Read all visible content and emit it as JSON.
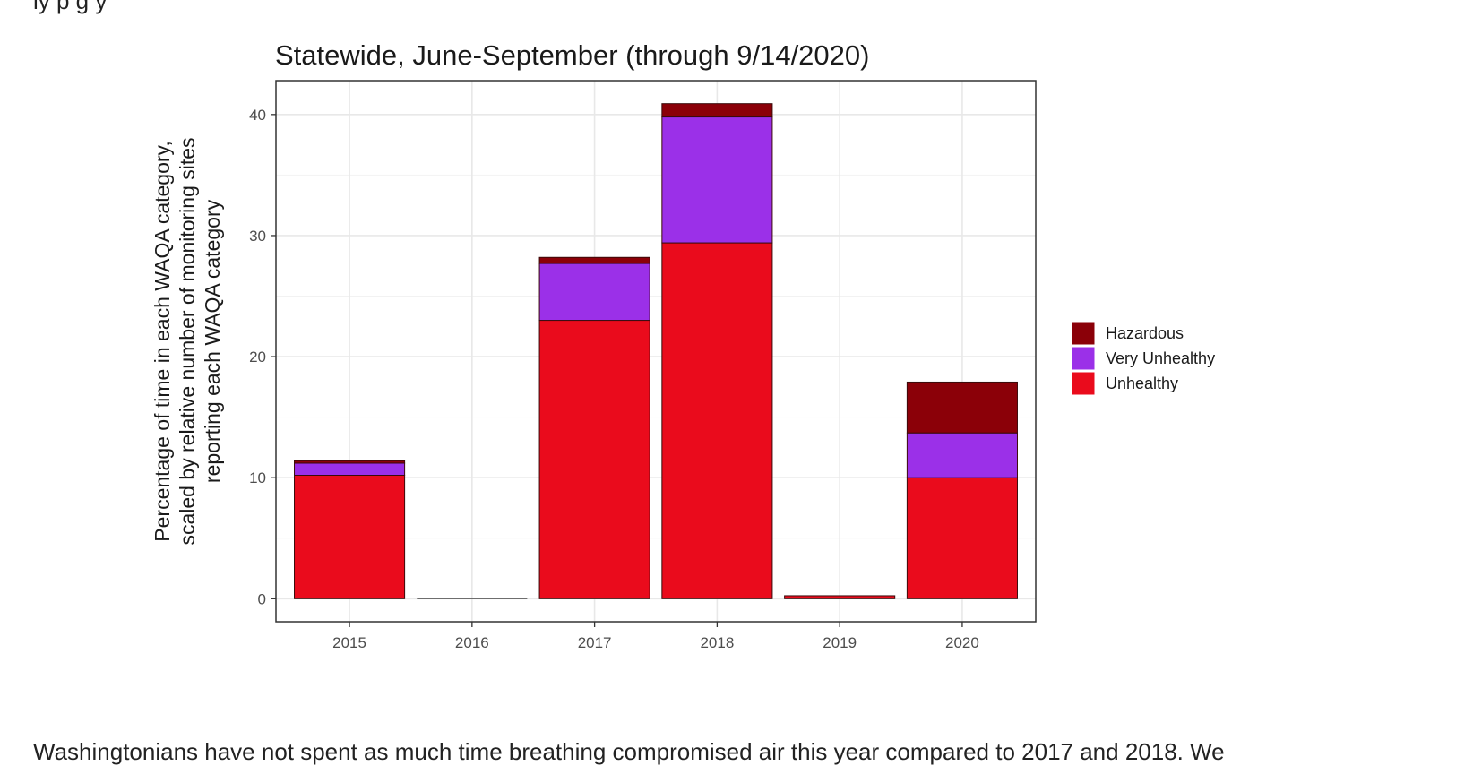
{
  "page": {
    "top_partial_text": "ly                      p                   g                                                                                          y",
    "bottom_partial_text": "Washingtonians have not spent as much time breathing compromised air this year compared to 2017 and 2018. We"
  },
  "chart_data": {
    "type": "bar",
    "stacked": true,
    "title": "Statewide, June-September (through 9/14/2020)",
    "ylabel_lines": [
      "Percentage of time in each WAQA category,",
      "scaled by relative number of monitoring sites",
      "reporting each WAQA category"
    ],
    "xlabel": "",
    "categories": [
      "2015",
      "2016",
      "2017",
      "2018",
      "2019",
      "2020"
    ],
    "ylim": [
      -1.9,
      42.8
    ],
    "yticks": [
      0,
      10,
      20,
      30,
      40
    ],
    "grid": true,
    "legend_position": "right",
    "series": [
      {
        "name": "Unhealthy",
        "color": "#ea0b1c",
        "values": [
          10.2,
          0.0,
          23.0,
          29.4,
          0.25,
          10.0
        ]
      },
      {
        "name": "Very Unhealthy",
        "color": "#9b30e8",
        "values": [
          1.0,
          0.0,
          4.7,
          10.4,
          0.0,
          3.7
        ]
      },
      {
        "name": "Hazardous",
        "color": "#8b0008",
        "values": [
          0.2,
          0.0,
          0.5,
          1.1,
          0.0,
          4.2
        ]
      }
    ],
    "legend_order": [
      "Hazardous",
      "Very Unhealthy",
      "Unhealthy"
    ]
  }
}
